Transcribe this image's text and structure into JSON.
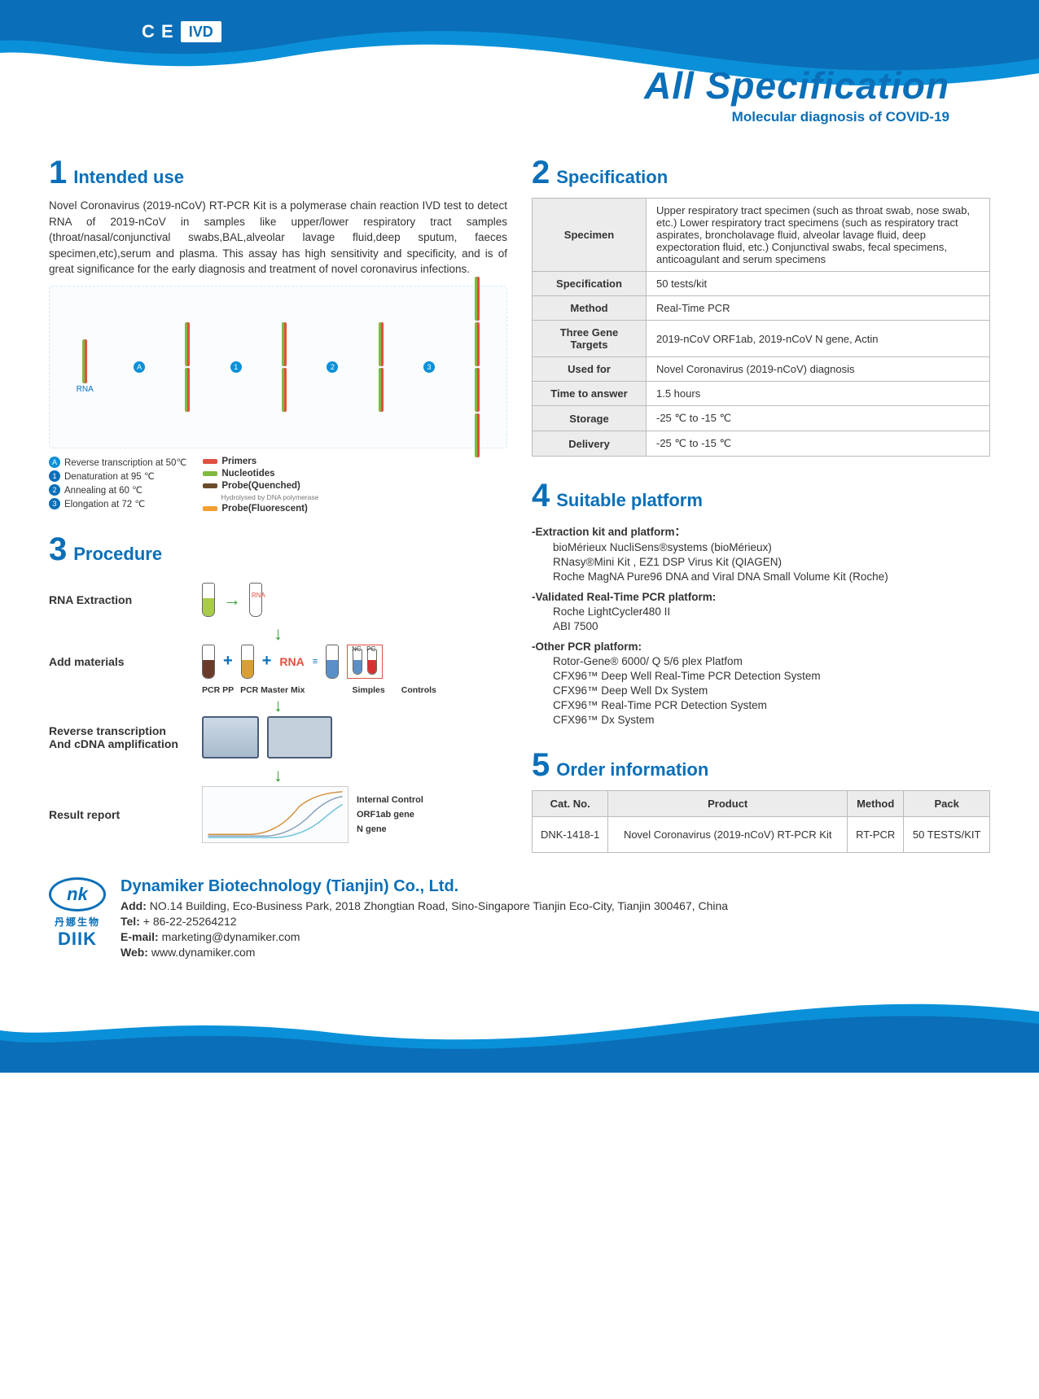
{
  "header": {
    "ce": "C E",
    "ivd": "IVD",
    "title": "All Specification",
    "subtitle": "Molecular diagnosis of COVID-19",
    "wave_colors": {
      "outer": "#0a90d8",
      "inner": "#0a6fb8"
    }
  },
  "sections": {
    "s1": {
      "num": "1",
      "title": "Intended use",
      "body": "Novel Coronavirus (2019-nCoV) RT-PCR Kit is a polymerase chain reaction IVD test to detect RNA of 2019-nCoV in samples like upper/lower respiratory tract samples (throat/nasal/conjunctival swabs,BAL,alveolar lavage fluid,deep sputum, faeces specimen,etc),serum and plasma. This assay has high sensitivity and specificity, and is of great significance for the early diagnosis and treatment of novel coronavirus infections."
    },
    "s2": {
      "num": "2",
      "title": "Specification"
    },
    "s3": {
      "num": "3",
      "title": "Procedure"
    },
    "s4": {
      "num": "4",
      "title": "Suitable platform"
    },
    "s5": {
      "num": "5",
      "title": "Order information"
    }
  },
  "pcr_legend": {
    "A": "Reverse transcription at 50℃",
    "B1": "Denaturation at 95 ℃",
    "B2": "Annealing at 60 ℃",
    "B3": "Elongation at 72 ℃",
    "primers": "Primers",
    "nucleotides": "Nucleotides",
    "probe_q": "Probe(Quenched)",
    "probe_q_sub": "Hydrolysed by DNA polymerase",
    "probe_f": "Probe(Fluorescent)",
    "rna_label": "RNA",
    "colors": {
      "green": "#7fb93f",
      "red": "#e05040",
      "blue": "#0a90d8",
      "yellow": "#f0b030",
      "quench": "#6a4b2a",
      "fluor": "#f2a030"
    }
  },
  "procedure": {
    "step1": "RNA Extraction",
    "step2": "Add materials",
    "step2_labels": {
      "pp": "PCR PP",
      "mm": "PCR Master Mix",
      "simples": "Simples",
      "controls": "Controls",
      "nc": "NC",
      "pc": "PC",
      "rna": "RNA"
    },
    "step3": "Reverse transcription And cDNA amplification",
    "step4": "Result report",
    "chart_labels": {
      "ic": "Internal Control",
      "orf": "ORF1ab gene",
      "n": "N gene"
    },
    "chart_colors": {
      "ic": "#d88f3a",
      "orf": "#8aa0b8",
      "n": "#6ac0d8"
    }
  },
  "spec_table": [
    {
      "k": "Specimen",
      "v": "Upper respiratory tract specimen (such as throat swab, nose swab, etc.) Lower respiratory tract specimens (such as respiratory tract aspirates, broncholavage fluid, alveolar lavage fluid, deep expectoration fluid, etc.) Conjunctival swabs, fecal specimens, anticoagulant and serum specimens"
    },
    {
      "k": "Specification",
      "v": "50 tests/kit"
    },
    {
      "k": "Method",
      "v": "Real-Time PCR"
    },
    {
      "k": "Three Gene Targets",
      "v": "2019-nCoV ORF1ab, 2019-nCoV N gene, Actin"
    },
    {
      "k": "Used for",
      "v": "Novel Coronavirus (2019-nCoV) diagnosis"
    },
    {
      "k": "Time to answer",
      "v": "1.5 hours"
    },
    {
      "k": "Storage",
      "v": "-25 ℃ to -15 ℃"
    },
    {
      "k": "Delivery",
      "v": "-25 ℃ to -15 ℃"
    }
  ],
  "platform": {
    "g1_head": "-Extraction kit and platform：",
    "g1": [
      "bioMérieux NucliSens®systems (bioMérieux)",
      "RNasy®Mini Kit , EZ1 DSP Virus Kit (QIAGEN)",
      "Roche MagNA Pure96 DNA and Viral DNA Small Volume Kit (Roche)"
    ],
    "g2_head": "-Validated Real-Time PCR platform:",
    "g2": [
      "Roche LightCycler480 II",
      "ABI 7500"
    ],
    "g3_head": "-Other PCR platform:",
    "g3": [
      "Rotor-Gene® 6000/ Q 5/6 plex Platfom",
      "CFX96™ Deep Well Real-Time PCR Detection System",
      "CFX96™ Deep Well Dx System",
      "CFX96™ Real-Time PCR Detection System",
      "CFX96™ Dx System"
    ]
  },
  "order": {
    "headers": {
      "cat": "Cat. No.",
      "product": "Product",
      "method": "Method",
      "pack": "Pack"
    },
    "rows": [
      {
        "cat": "DNK-1418-1",
        "product": "Novel Coronavirus (2019-nCoV) RT-PCR Kit",
        "method": "RT-PCR",
        "pack": "50 TESTS/KIT"
      }
    ]
  },
  "footer": {
    "company": "Dynamiker Biotechnology (Tianjin) Co., Ltd.",
    "addr_label": "Add:",
    "addr": "NO.14 Building, Eco-Business Park, 2018 Zhongtian Road, Sino-Singapore Tianjin Eco-City, Tianjin 300467, China",
    "tel_label": "Tel:",
    "tel": "+ 86-22-25264212",
    "email_label": "E-mail:",
    "email": "marketing@dynamiker.com",
    "web_label": "Web:",
    "web": "www.dynamiker.com",
    "logo_cn": "丹娜生物",
    "logo_en": "DIIK",
    "logo_mark": "nk"
  }
}
